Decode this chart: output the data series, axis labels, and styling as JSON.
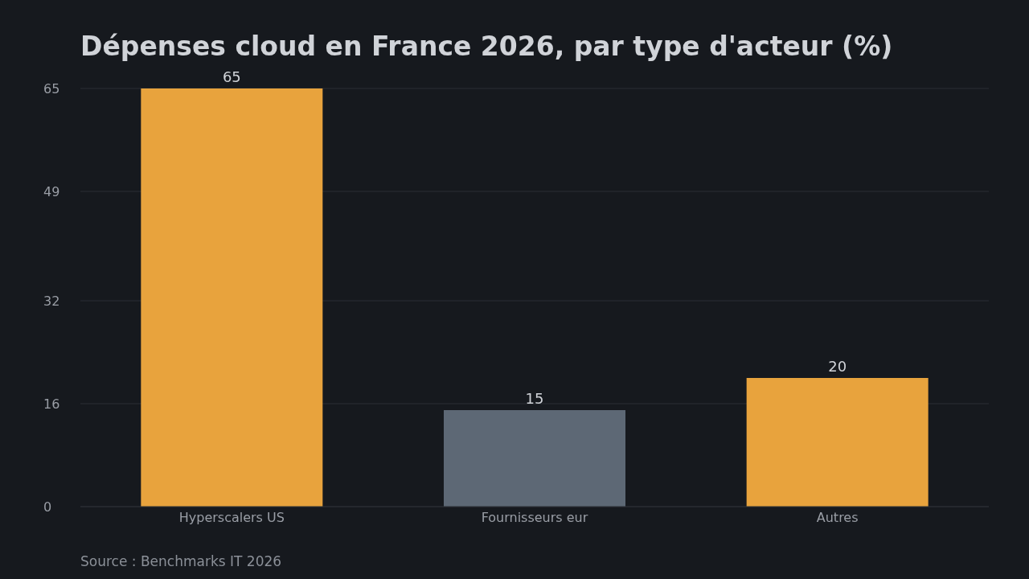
{
  "chart_data": {
    "type": "bar",
    "title": "Dépenses cloud en France 2026, par type d'acteur (%)",
    "categories": [
      "Hyperscalers US",
      "Fournisseurs eur",
      "Autres"
    ],
    "values": [
      65,
      15,
      20
    ],
    "colors": [
      "#e8a33d",
      "#5d6875",
      "#e8a33d"
    ],
    "ylim": [
      0,
      65
    ],
    "yticks": [
      0,
      16,
      32,
      49,
      65
    ],
    "grid": "y",
    "data_labels": true,
    "annotations": [
      "Source : Benchmarks IT 2026"
    ]
  }
}
